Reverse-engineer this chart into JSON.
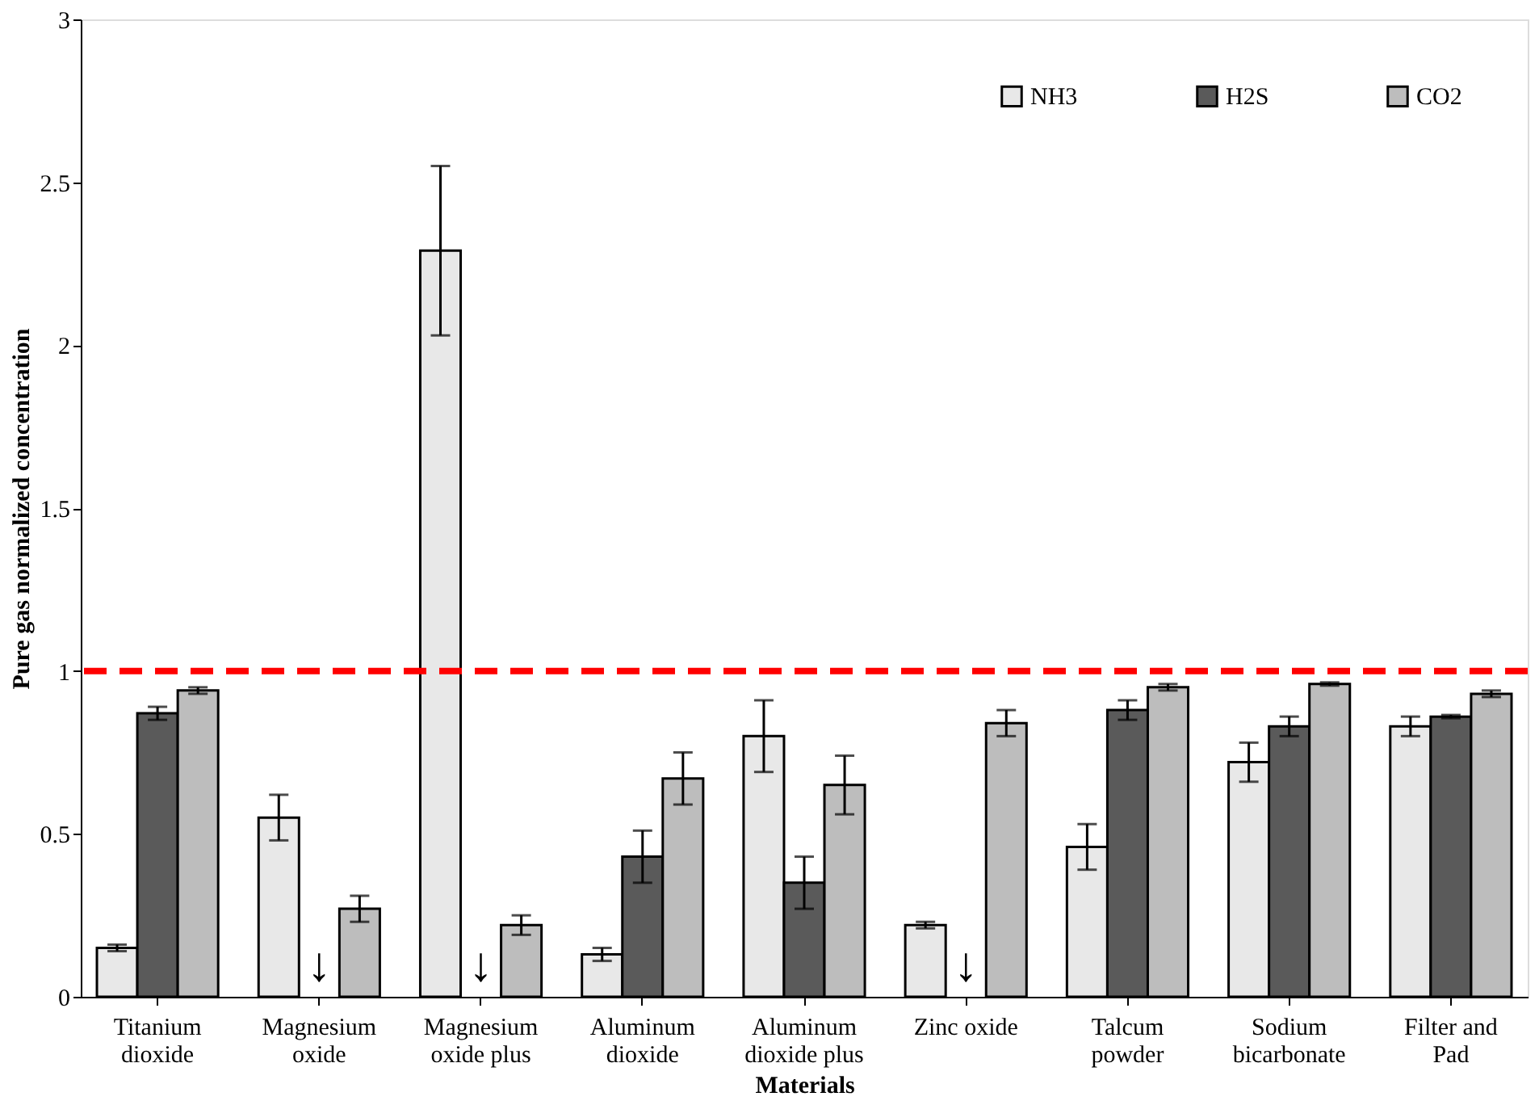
{
  "chart_data": {
    "type": "bar",
    "xlabel": "Materials",
    "ylabel": "Pure gas normalized concentration",
    "categories": [
      "Titanium dioxide",
      "Magnesium oxide",
      "Magnesium oxide plus",
      "Aluminum dioxide",
      "Aluminum dioxide plus",
      "Zinc oxide",
      "Talcum powder",
      "Sodium bicarbonate",
      "Filter and Pad"
    ],
    "series": [
      {
        "name": "NH3",
        "color": "#e8e8e8",
        "values": [
          0.15,
          0.55,
          2.29,
          0.13,
          0.8,
          0.22,
          0.46,
          0.72,
          0.83
        ],
        "errors": [
          0.01,
          0.07,
          0.26,
          0.02,
          0.11,
          0.01,
          0.07,
          0.06,
          0.03
        ]
      },
      {
        "name": "H2S",
        "color": "#5a5a5a",
        "values": [
          0.87,
          null,
          null,
          0.43,
          0.35,
          null,
          0.88,
          0.83,
          0.86
        ],
        "errors": [
          0.02,
          null,
          null,
          0.08,
          0.08,
          null,
          0.03,
          0.03,
          0.005
        ]
      },
      {
        "name": "CO2",
        "color": "#bdbdbd",
        "values": [
          0.94,
          0.27,
          0.22,
          0.67,
          0.65,
          0.84,
          0.95,
          0.96,
          0.93
        ],
        "errors": [
          0.01,
          0.04,
          0.03,
          0.08,
          0.09,
          0.04,
          0.01,
          0.005,
          0.01
        ]
      }
    ],
    "ylim": [
      0,
      3
    ],
    "yticks": [
      0,
      0.5,
      1,
      1.5,
      2,
      2.5,
      3
    ],
    "ref_lines": [
      {
        "axis": "y",
        "value": 1,
        "color": "#ff0000",
        "line_style": "dashed"
      }
    ],
    "annotations": [
      "↓",
      "↓",
      "↓"
    ],
    "legend": "top right",
    "grid": false
  }
}
